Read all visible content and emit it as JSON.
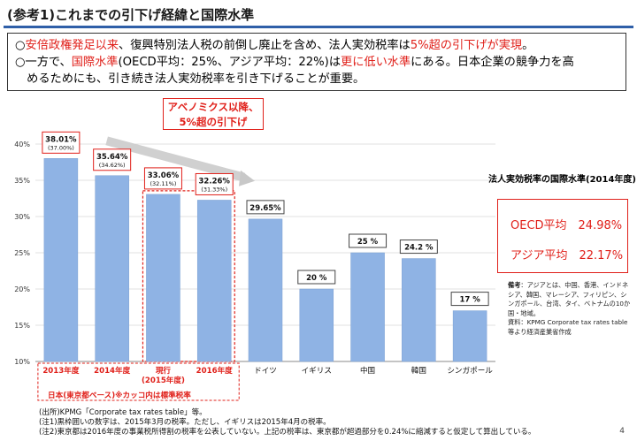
{
  "title": "(参考1)これまでの引下げ経緯と国際水準",
  "summary": {
    "line1_a": "○",
    "line1_red": "安倍政権発足以来",
    "line1_b": "、復興特別法人税の前倒し廃止を含め、法人実効税率は",
    "line1_red2": "5%超の引下げが実現",
    "line1_c": "。",
    "line2_a": "○一方で、",
    "line2_red": "国際水準",
    "line2_b": "(OECD平均：25%、アジア平均：22%)は",
    "line2_red2": "更に低い水準",
    "line2_c": "にある。日本企業の競争力を高",
    "line3": "　めるためにも、引き続き法人実効税率を引き下げることが重要。"
  },
  "callout": {
    "line1": "アベノミクス以降、",
    "line2": "5%超の引下げ"
  },
  "chart_data": {
    "type": "bar",
    "categories": [
      "2013年度",
      "2014年度",
      "現行\n(2015年度)",
      "2016年度",
      "ドイツ",
      "イギリス",
      "中国",
      "韓国",
      "シンガポール"
    ],
    "values": [
      38.01,
      35.64,
      33.06,
      32.26,
      29.65,
      20,
      25,
      24.2,
      17
    ],
    "value_labels": [
      "38.01%",
      "35.64%",
      "33.06%",
      "32.26%",
      "29.65%",
      "20 %",
      "25 %",
      "24.2 %",
      "17 %"
    ],
    "sub_labels": [
      "(37.00%)",
      "(34.62%)",
      "(32.11%)",
      "(31.33%)",
      "",
      "",
      "",
      "",
      ""
    ],
    "ylim": [
      10,
      40
    ],
    "yticks": [
      "10%",
      "15%",
      "20%",
      "25%",
      "30%",
      "35%",
      "40%"
    ],
    "bar_color": "#8fb3e4",
    "accent_color": "#e0201a"
  },
  "japan_note": "日本(東京都ベース)※カッコ内は標準税率",
  "table_title": "法人実効税率の国際水準(2014年度)",
  "averages": {
    "oecd": "OECD平均　24.98%",
    "asia": "アジア平均　22.17%"
  },
  "side_note": {
    "label": "備考",
    "text": "：アジアとは、中国、香港、インドネシア、韓国、マレーシア、フィリピン、シンガポール、台湾、タイ、ベトナムの10か国・地域。",
    "source": "資料：KPMG Corporate tax rates table等より経済産業省作成"
  },
  "sources": [
    "(出所)KPMG「Corporate tax rates table」等。",
    "(注1)黒枠囲いの数字は、2015年3月の税率。ただし、イギリスは2015年4月の税率。",
    "(注2)東京都は2016年度の事業税所得割の税率を公表していない。上記の税率は、東京都が超過部分を0.24%に縮減すると仮定して算出している。"
  ],
  "page_number": "4"
}
